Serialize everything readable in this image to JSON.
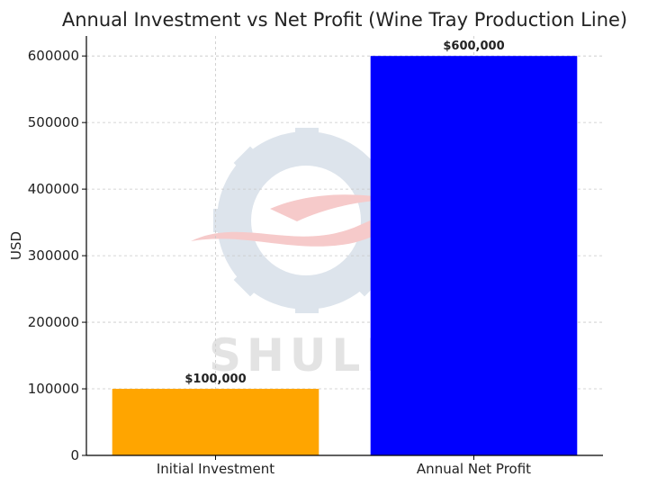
{
  "chart_data": {
    "type": "bar",
    "title": "Annual Investment vs Net Profit (Wine Tray Production Line)",
    "xlabel": "",
    "ylabel": "USD",
    "categories": [
      "Initial Investment",
      "Annual Net Profit"
    ],
    "values": [
      100000,
      600000
    ],
    "data_labels": [
      "$100,000",
      "$600,000"
    ],
    "colors": [
      "#FFA500",
      "#0000FF"
    ],
    "ylim": [
      0,
      630000
    ],
    "yticks": [
      0,
      100000,
      200000,
      300000,
      400000,
      500000,
      600000
    ],
    "ytick_labels": [
      "0",
      "100000",
      "200000",
      "300000",
      "400000",
      "500000",
      "600000"
    ],
    "grid": true,
    "grid_style": "dashed",
    "legend": "none"
  },
  "watermark": {
    "text": "SHULI",
    "icon": "gear-logo-icon",
    "colors": {
      "gear": "#dde4ec",
      "swoosh": "#f6caca",
      "text": "#e3e3e3"
    }
  }
}
